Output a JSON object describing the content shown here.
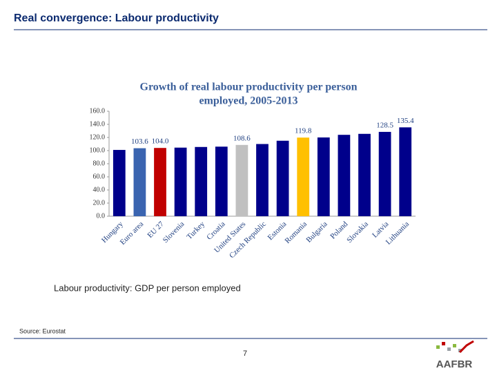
{
  "header": {
    "title": "Real convergence: Labour productivity"
  },
  "chart_data": {
    "type": "bar",
    "title": "Growth of real labour productivity per person",
    "subtitle": "employed, 2005-2013",
    "categories": [
      "Hungary",
      "Euro area",
      "EU 27",
      "Slovenia",
      "Turkey",
      "Croatia",
      "United States",
      "Czech Republic",
      "Estonia",
      "Romania",
      "Bulgaria",
      "Poland",
      "Slovakia",
      "Latvia",
      "Lithuania"
    ],
    "values": [
      101,
      103.6,
      104.0,
      104.5,
      105.5,
      106,
      108.6,
      110,
      115,
      119.8,
      120,
      124,
      125.5,
      128.5,
      135.4
    ],
    "value_labels": [
      null,
      "103.6",
      "104.0",
      null,
      null,
      null,
      "108.6",
      null,
      null,
      "119.8",
      null,
      null,
      null,
      "128.5",
      "135.4"
    ],
    "colors": [
      "#00008b",
      "#3a64b0",
      "#c00000",
      "#00008b",
      "#00008b",
      "#00008b",
      "#c0c0c0",
      "#00008b",
      "#00008b",
      "#ffc000",
      "#00008b",
      "#00008b",
      "#00008b",
      "#00008b",
      "#00008b"
    ],
    "ylim": [
      0,
      160
    ],
    "yticks": [
      {
        "value": 0,
        "label": "0.0"
      },
      {
        "value": 20,
        "label": "20.0"
      },
      {
        "value": 40,
        "label": "40.0"
      },
      {
        "value": 60,
        "label": "60.0"
      },
      {
        "value": 80,
        "label": "80.0"
      },
      {
        "value": 100,
        "label": "100.0"
      },
      {
        "value": 120,
        "label": "120.0"
      },
      {
        "value": 140,
        "label": "140.0"
      },
      {
        "value": 160,
        "label": "160.0"
      }
    ]
  },
  "caption": "Labour productivity: GDP per person employed",
  "source": "Source: Eurostat",
  "page_number": "7",
  "logo": {
    "text": "AAFBR"
  }
}
